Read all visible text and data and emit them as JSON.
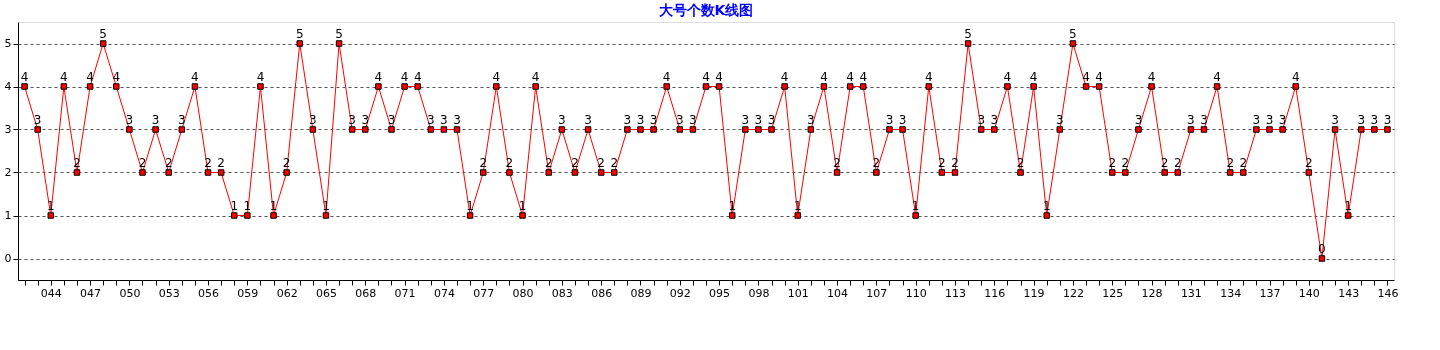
{
  "chart_data": {
    "type": "line",
    "title": "大号个数K线图",
    "categories": [
      null,
      null,
      "044",
      null,
      null,
      "047",
      null,
      null,
      "050",
      null,
      null,
      "053",
      null,
      null,
      "056",
      null,
      null,
      "059",
      null,
      null,
      "062",
      null,
      null,
      "065",
      null,
      null,
      "068",
      null,
      null,
      "071",
      null,
      null,
      "074",
      null,
      null,
      "077",
      null,
      null,
      "080",
      null,
      null,
      "083",
      null,
      null,
      "086",
      null,
      null,
      "089",
      null,
      null,
      "092",
      null,
      null,
      "095",
      null,
      null,
      "098",
      null,
      null,
      "101",
      null,
      null,
      "104",
      null,
      null,
      "107",
      null,
      null,
      "110",
      null,
      null,
      "113",
      null,
      null,
      "116",
      null,
      null,
      "119",
      null,
      null,
      "122",
      null,
      null,
      "125",
      null,
      null,
      "128",
      null,
      null,
      "131",
      null,
      null,
      "134",
      null,
      null,
      "137",
      null,
      null,
      "140",
      null,
      null,
      "143",
      null,
      null,
      "146"
    ],
    "series": [
      {
        "color": "#ff0000",
        "values": [
          4,
          3,
          1,
          4,
          2,
          4,
          5,
          4,
          3,
          2,
          3,
          2,
          3,
          4,
          2,
          2,
          1,
          1,
          4,
          1,
          2,
          5,
          3,
          1,
          5,
          3,
          3,
          4,
          3,
          4,
          4,
          3,
          3,
          3,
          1,
          2,
          4,
          2,
          1,
          4,
          2,
          3,
          2,
          3,
          2,
          2,
          3,
          3,
          3,
          4,
          3,
          3,
          4,
          4,
          1,
          3,
          3,
          3,
          4,
          1,
          3,
          4,
          2,
          4,
          4,
          2,
          3,
          3,
          1,
          4,
          2,
          2,
          5,
          3,
          3,
          4,
          2,
          4,
          1,
          3,
          5,
          4,
          4,
          2,
          2,
          3,
          4,
          2,
          2,
          3,
          3,
          4,
          2,
          2,
          3,
          3,
          3,
          4,
          2,
          0,
          3,
          1,
          3,
          3,
          3
        ]
      }
    ],
    "ylim": [
      -0.5,
      5.5
    ],
    "yticks": [
      0,
      1,
      2,
      3,
      4,
      5
    ],
    "grid": "y",
    "marker": "square",
    "line_style": "solid",
    "data_labels": true,
    "legend": false
  }
}
